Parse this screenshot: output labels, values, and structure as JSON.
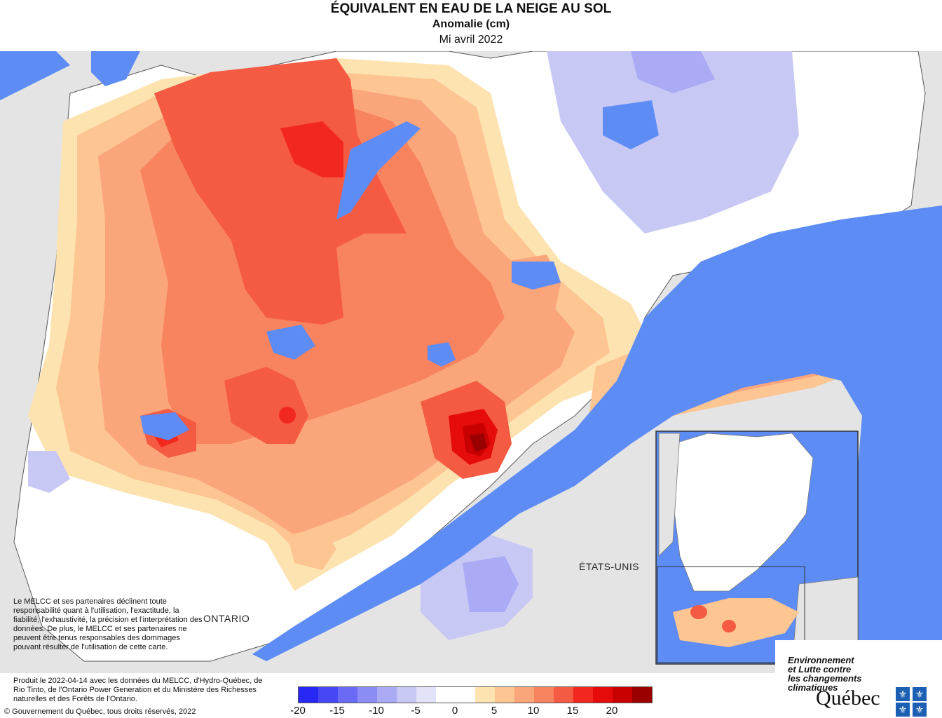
{
  "header": {
    "title": "ÉQUIVALENT EN EAU DE LA NEIGE AU SOL",
    "subtitle": "Anomalie (cm)",
    "period": "Mi avril 2022"
  },
  "map_labels": {
    "ontario": "ONTARIO",
    "us": "ÉTATS-UNIS"
  },
  "disclaimer": "Le MELCC et ses partenaires déclinent toute responsabilité quant à l'utilisation, l'exactitude, la fiabilité, l'exhaustivité, la précision et l'interprétation des données. De plus, le MELCC et ses partenaires ne peuvent être tenus responsables des dommages pouvant résulter de l'utilisation de cette carte.",
  "credit": "Produit le 2022-04-14 avec les données du MELCC, d'Hydro-Québec, de Rio Tinto, de l'Ontario Power Generation et du Ministère des Richesses naturelles et des Forêts de l'Ontario.",
  "copyright": "© Gouvernement du Québec, tous droits réservés, 2022",
  "legend": {
    "ticks": [
      "-20",
      "-15",
      "-10",
      "-5",
      "0",
      "5",
      "10",
      "15",
      "20"
    ],
    "colors": [
      "#2828f5",
      "#4646f5",
      "#6a6af5",
      "#8c8cf5",
      "#aaaaf5",
      "#c8c8f5",
      "#e2e2f8",
      "#ffffff",
      "#ffffff",
      "#fde3b0",
      "#fcc592",
      "#fba57b",
      "#f7845f",
      "#f55a42",
      "#f2281e",
      "#e60c0c",
      "#c80000",
      "#9a0000"
    ]
  },
  "logo": {
    "line1": "Environnement",
    "line2": "et Lutte contre",
    "line3": "les changements",
    "line4": "climatiques",
    "word": "Québec"
  },
  "colors": {
    "water": "#5e8cf5",
    "land_outside": "#e4e4e4",
    "border": "#555555"
  }
}
